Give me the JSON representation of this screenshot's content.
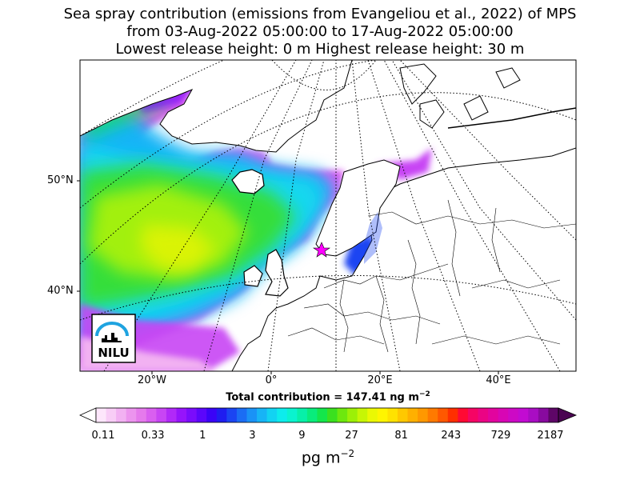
{
  "title": {
    "line1": "Sea spray contribution (emissions from Evangeliou et al., 2022) of MPS",
    "line2": "from 03-Aug-2022 05:00:00 to 17-Aug-2022 05:00:00",
    "line3": "Lowest release height: 0 m      Highest release height: 30 m"
  },
  "map": {
    "lat_labels": [
      "50°N",
      "40°N"
    ],
    "lon_labels": [
      "20°W",
      "0°",
      "20°E",
      "40°E"
    ],
    "station_marker": "star",
    "logo_text": "NILU"
  },
  "total": "Total contribution = 147.41 ng m",
  "total_exp": "−2",
  "colorbar": {
    "ticks": [
      "0.11",
      "0.33",
      "1",
      "3",
      "9",
      "27",
      "81",
      "243",
      "729",
      "2187"
    ],
    "unit": "pg m",
    "unit_exp": "−2",
    "colors": [
      "#fde6fb",
      "#f8cdf6",
      "#f2b1f2",
      "#ec94ee",
      "#e57aec",
      "#d95ff0",
      "#c845f4",
      "#b129f8",
      "#9614fb",
      "#7a0cfc",
      "#5b06fb",
      "#3a03f7",
      "#1f1df0",
      "#1b45f2",
      "#1b6df4",
      "#1a92f6",
      "#17b4f6",
      "#12d3f2",
      "#0decec",
      "#0af3cf",
      "#07f0a9",
      "#09ec7c",
      "#14e64b",
      "#3be01f",
      "#6de80e",
      "#9cf007",
      "#c7f605",
      "#ebf803",
      "#fff500",
      "#ffe200",
      "#ffc800",
      "#ffb000",
      "#ff9800",
      "#ff7a00",
      "#ff5800",
      "#ff2f00",
      "#ff0a33",
      "#f50564",
      "#eb0484",
      "#e2049e",
      "#d806b4",
      "#cd09c5",
      "#c20bd2",
      "#a90dc3",
      "#880a9f",
      "#5e0667"
    ]
  }
}
